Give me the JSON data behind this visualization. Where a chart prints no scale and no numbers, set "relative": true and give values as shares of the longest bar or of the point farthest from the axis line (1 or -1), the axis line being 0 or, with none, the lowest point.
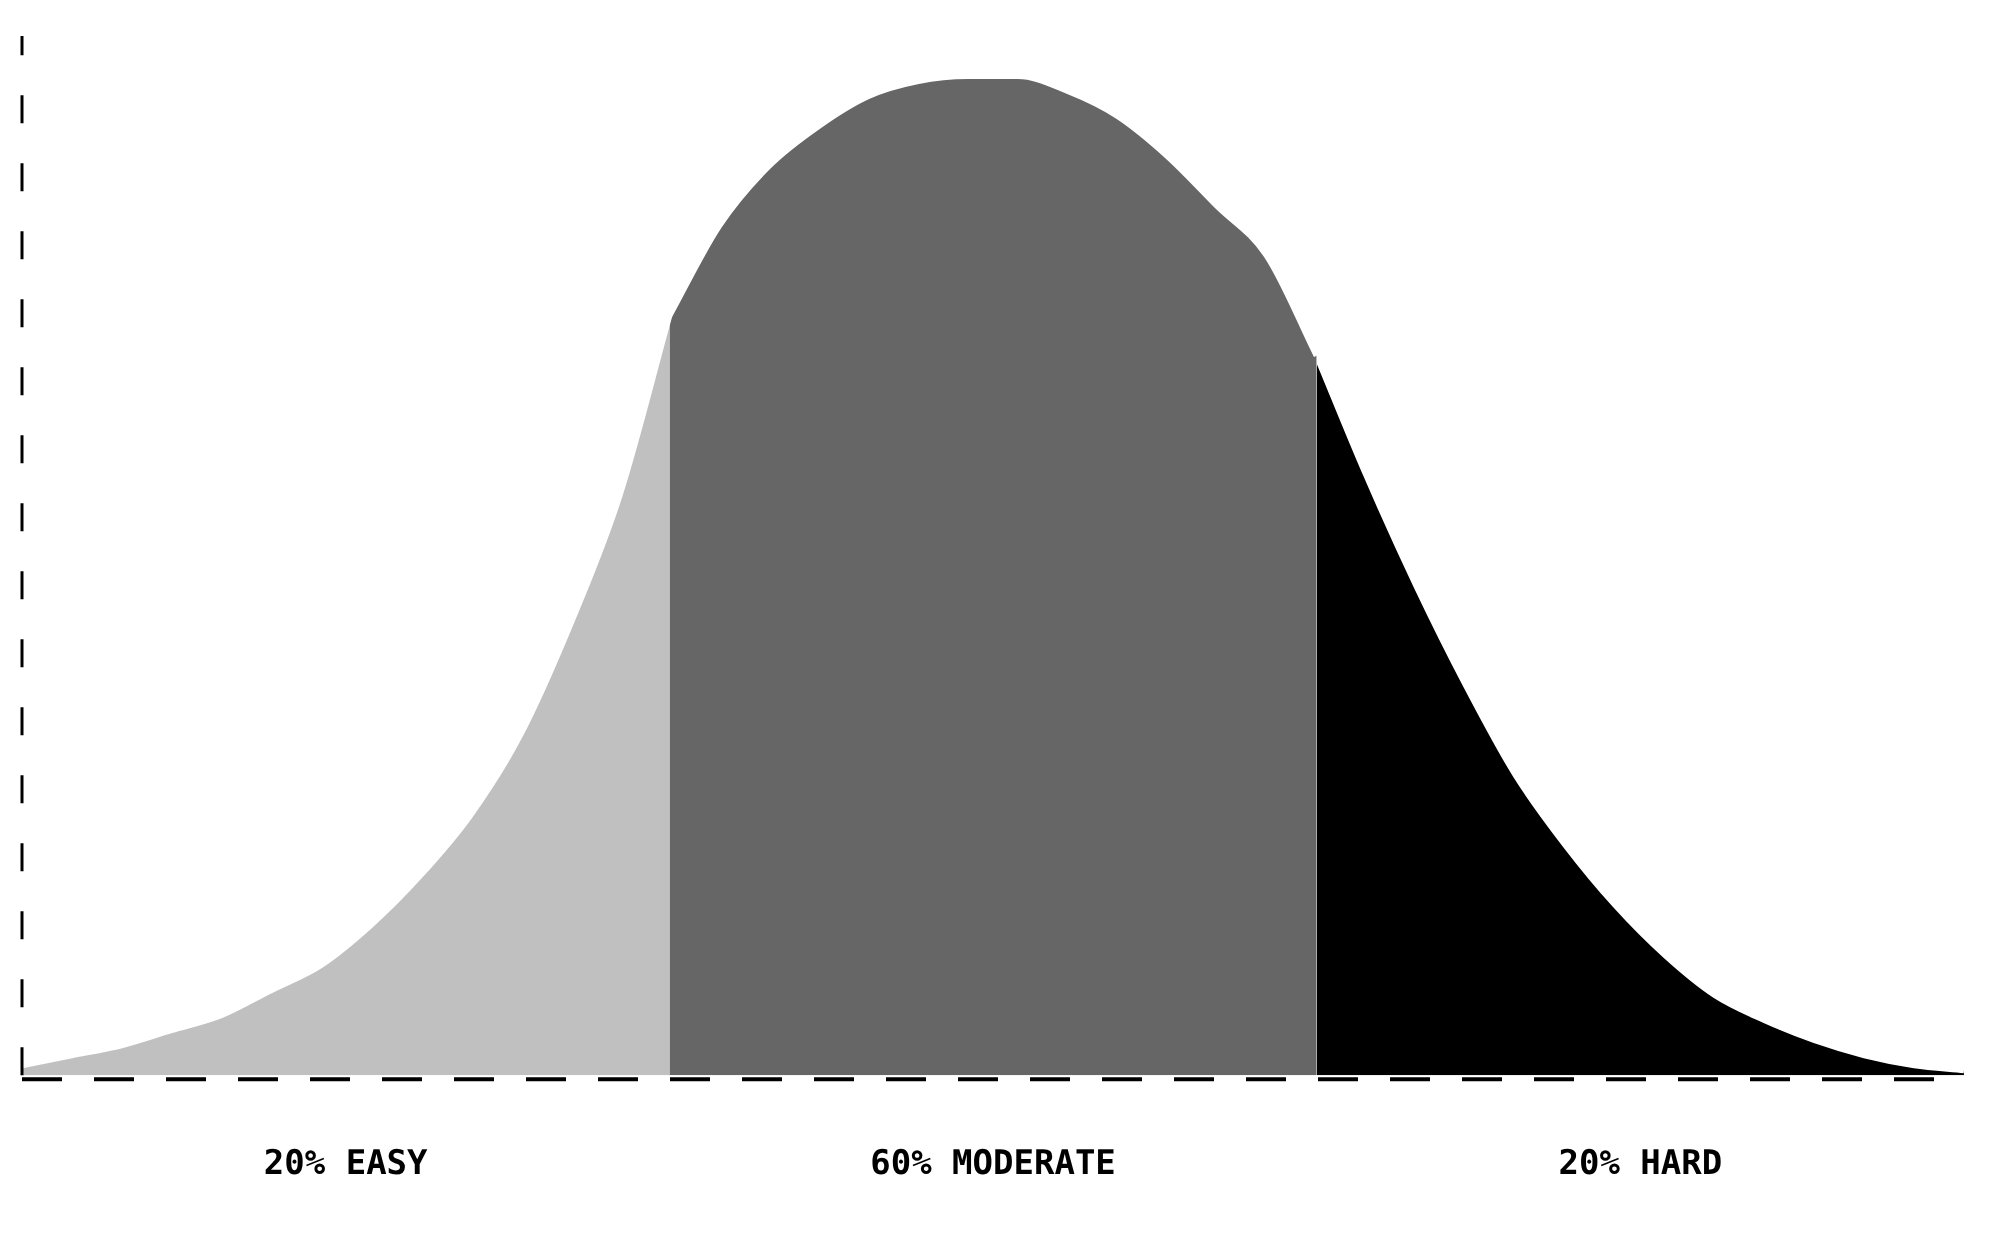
{
  "chart_data": {
    "type": "area",
    "relative": true,
    "grid": false,
    "legend": false,
    "categories": [
      null,
      null,
      null,
      null,
      null,
      null,
      null,
      null,
      null,
      null,
      null,
      null,
      null,
      null,
      null,
      null,
      null,
      null,
      null,
      null,
      null,
      null,
      null,
      null,
      null,
      null,
      null,
      null,
      null,
      null,
      null,
      null,
      null,
      null,
      null,
      null,
      null,
      null,
      null,
      null
    ],
    "series": [
      {
        "name": "20% EASY",
        "color": "#c0c0c0",
        "values": [
          0.01,
          0.02,
          0.03,
          0.045,
          0.06,
          0.085,
          0.11,
          0.15,
          0.2,
          0.26,
          0.34,
          0.45,
          0.58,
          0.76,
          null,
          null,
          null,
          null,
          null,
          null,
          null,
          null,
          null,
          null,
          null,
          null,
          null,
          null,
          null,
          null,
          null,
          null,
          null,
          null,
          null,
          null,
          null,
          null,
          null,
          null
        ]
      },
      {
        "name": "60% MODERATE",
        "color": "#666666",
        "values": [
          null,
          null,
          null,
          null,
          null,
          null,
          null,
          null,
          null,
          null,
          null,
          null,
          null,
          0.76,
          0.85,
          0.91,
          0.95,
          0.98,
          0.995,
          1.0,
          1.0,
          0.985,
          0.96,
          0.92,
          0.87,
          0.82,
          0.72,
          null,
          null,
          null,
          null,
          null,
          null,
          null,
          null,
          null,
          null,
          null,
          null,
          null
        ]
      },
      {
        "name": "20% HARD",
        "color": "#000000",
        "values": [
          null,
          null,
          null,
          null,
          null,
          null,
          null,
          null,
          null,
          null,
          null,
          null,
          null,
          null,
          null,
          null,
          null,
          null,
          null,
          null,
          null,
          null,
          null,
          null,
          null,
          null,
          0.72,
          0.6,
          0.49,
          0.39,
          0.3,
          0.23,
          0.17,
          0.12,
          0.08,
          0.055,
          0.035,
          0.02,
          0.01,
          0.005
        ]
      }
    ]
  }
}
